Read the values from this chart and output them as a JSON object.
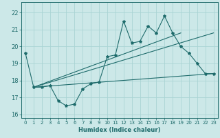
{
  "xlabel": "Humidex (Indice chaleur)",
  "xlim": [
    -0.5,
    23.5
  ],
  "ylim": [
    15.8,
    22.6
  ],
  "xticks": [
    0,
    1,
    2,
    3,
    4,
    5,
    6,
    7,
    8,
    9,
    10,
    11,
    12,
    13,
    14,
    15,
    16,
    17,
    18,
    19,
    20,
    21,
    22,
    23
  ],
  "yticks": [
    16,
    17,
    18,
    19,
    20,
    21,
    22
  ],
  "bg_color": "#cce8e8",
  "line_color": "#1e6b6b",
  "grid_color": "#aad4d4",
  "line1_x": [
    0,
    1,
    2,
    3,
    4,
    5,
    6,
    7,
    8,
    9,
    10,
    11,
    12,
    13,
    14,
    15,
    16,
    17,
    18,
    19,
    20,
    21,
    22,
    23
  ],
  "line1_y": [
    19.6,
    17.6,
    17.6,
    17.7,
    16.8,
    16.5,
    16.6,
    17.5,
    17.8,
    17.9,
    19.4,
    19.5,
    21.5,
    20.2,
    20.3,
    21.2,
    20.8,
    21.8,
    20.8,
    20.0,
    19.6,
    19.0,
    18.4,
    18.4
  ],
  "line2_x": [
    1,
    23
  ],
  "line2_y": [
    17.6,
    18.4
  ],
  "line3_x": [
    1,
    19
  ],
  "line3_y": [
    17.6,
    20.8
  ],
  "line4_x": [
    1,
    23
  ],
  "line4_y": [
    17.6,
    20.8
  ]
}
